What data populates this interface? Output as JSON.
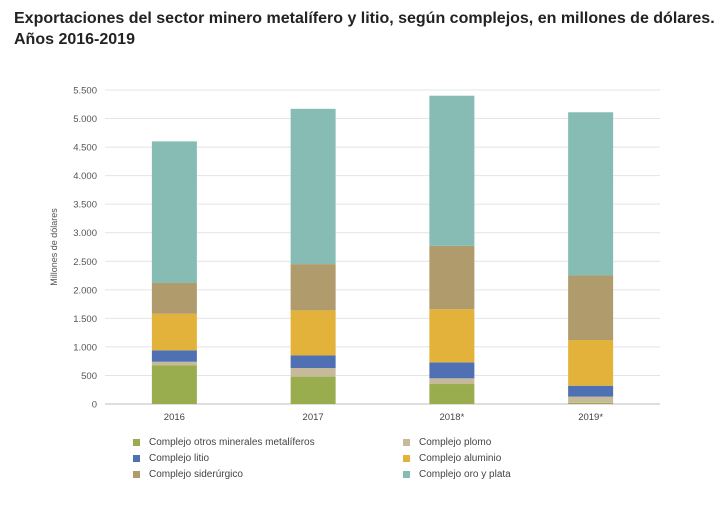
{
  "title_line1": "Exportaciones del sector minero metalífero y litio, según complejos, en millones de dólares.",
  "title_line2": "Años 2016-2019",
  "chart_data": {
    "type": "bar",
    "stacked": true,
    "categories": [
      "2016",
      "2017",
      "2018*",
      "2019*"
    ],
    "ylabel": "Millones de dólares",
    "xlabel": "",
    "ylim": [
      0,
      5500
    ],
    "yticks": [
      0,
      500,
      1000,
      1500,
      2000,
      2500,
      3000,
      3500,
      4000,
      4500,
      5000,
      5500
    ],
    "ytick_labels": [
      "0",
      "500",
      "1.000",
      "1.500",
      "2.000",
      "2.500",
      "3.000",
      "3.500",
      "4.000",
      "4.500",
      "5.000",
      "5.500"
    ],
    "grid": true,
    "legend_position": "bottom",
    "series": [
      {
        "name": "Complejo otros minerales metalíferos",
        "color": "#99ad4f",
        "values": [
          680,
          480,
          350,
          20
        ]
      },
      {
        "name": "Complejo plomo",
        "color": "#c7ba9a",
        "values": [
          60,
          150,
          100,
          110
        ]
      },
      {
        "name": "Complejo litio",
        "color": "#4f71b3",
        "values": [
          200,
          220,
          280,
          190
        ]
      },
      {
        "name": "Complejo aluminio",
        "color": "#e2b23b",
        "values": [
          640,
          790,
          930,
          800
        ]
      },
      {
        "name": "Complejo siderúrgico",
        "color": "#b09b6d",
        "values": [
          540,
          810,
          1110,
          1130
        ]
      },
      {
        "name": "Complejo oro y plata",
        "color": "#86bcb3",
        "values": [
          2480,
          2720,
          2630,
          2860
        ]
      }
    ]
  }
}
